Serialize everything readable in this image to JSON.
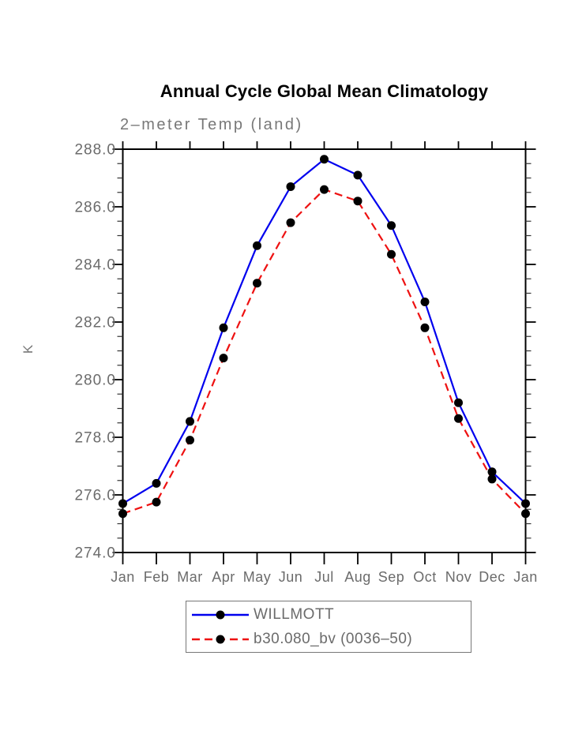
{
  "chart_data": {
    "type": "line",
    "title": "Annual Cycle Global Mean Climatology",
    "subtitle": "2–meter Temp (land)",
    "ylabel": "K",
    "xlabel": "",
    "categories": [
      "Jan",
      "Feb",
      "Mar",
      "Apr",
      "May",
      "Jun",
      "Jul",
      "Aug",
      "Sep",
      "Oct",
      "Nov",
      "Dec",
      "Jan"
    ],
    "ylim": [
      274.0,
      288.0
    ],
    "ytick_major_step": 2.0,
    "ytick_minor_step": 0.5,
    "grid": "off",
    "legend_position": "bottom",
    "marker": "filled-circle",
    "marker_color": "#000000",
    "series": [
      {
        "name": "WILLMOTT",
        "color": "#0000ee",
        "style": "solid",
        "values": [
          275.7,
          276.4,
          278.55,
          281.8,
          284.65,
          286.7,
          287.65,
          287.1,
          285.35,
          282.7,
          279.2,
          276.8,
          275.7
        ]
      },
      {
        "name": "b30.080_bv (0036–50)",
        "color": "#ee1111",
        "style": "dashed",
        "values": [
          275.35,
          275.75,
          277.9,
          280.75,
          283.35,
          285.45,
          286.6,
          286.2,
          284.35,
          281.8,
          278.65,
          276.55,
          275.35
        ]
      }
    ]
  }
}
